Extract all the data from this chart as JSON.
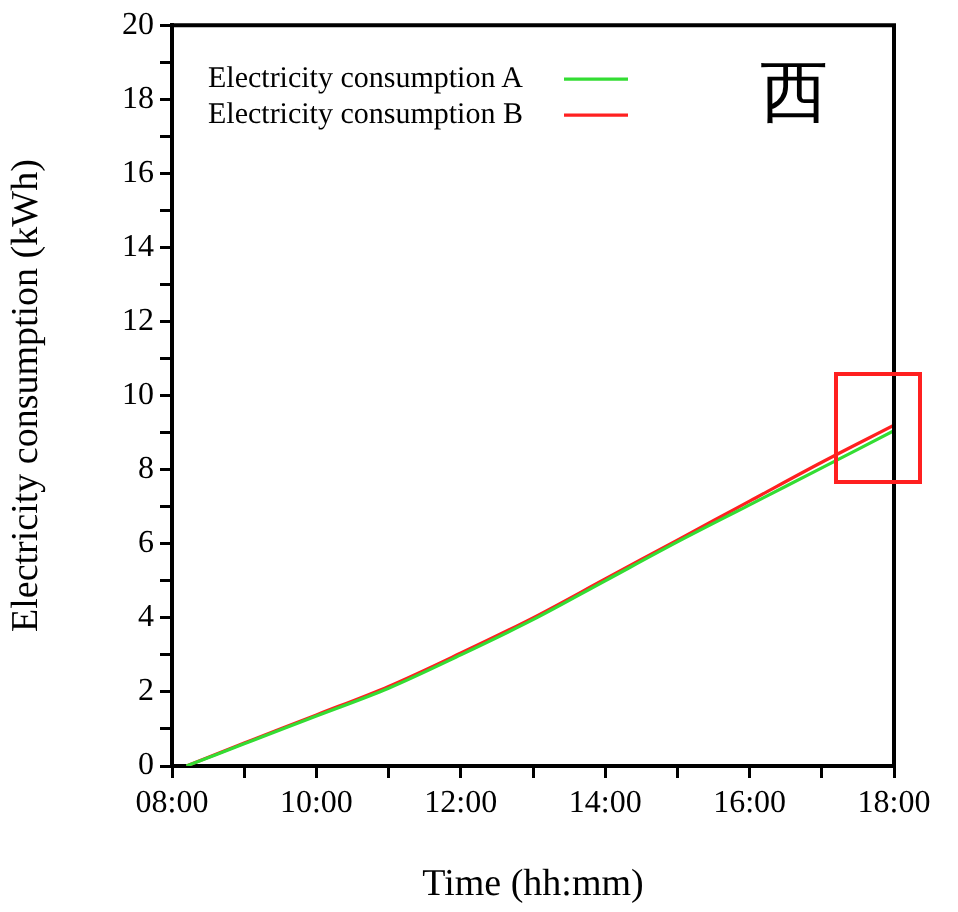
{
  "chart_data": {
    "type": "line",
    "xlabel": "Time (hh:mm)",
    "ylabel": "Electricity consumption (kWh)",
    "annotations": [
      "西"
    ],
    "series": [
      {
        "name": "Electricity consumption A",
        "color": "#33dd33",
        "x": [
          8.2,
          9,
          10,
          11,
          12,
          13,
          14,
          15,
          16,
          17,
          18
        ],
        "values": [
          0,
          0.6,
          1.35,
          2.1,
          3.0,
          3.95,
          5.0,
          6.05,
          7.05,
          8.05,
          9.05
        ]
      },
      {
        "name": "Electricity consumption B",
        "color": "#ff2020",
        "x": [
          8.2,
          9,
          10,
          11,
          12,
          13,
          14,
          15,
          16,
          17,
          18
        ],
        "values": [
          0,
          0.62,
          1.38,
          2.15,
          3.05,
          4.0,
          5.05,
          6.1,
          7.15,
          8.2,
          9.2
        ]
      }
    ],
    "xlim": [
      8,
      18
    ],
    "xticks": [
      {
        "value": 8,
        "label": "08:00"
      },
      {
        "value": 9,
        "label": null
      },
      {
        "value": 10,
        "label": "10:00"
      },
      {
        "value": 11,
        "label": null
      },
      {
        "value": 12,
        "label": "12:00"
      },
      {
        "value": 13,
        "label": null
      },
      {
        "value": 14,
        "label": "14:00"
      },
      {
        "value": 15,
        "label": null
      },
      {
        "value": 16,
        "label": "16:00"
      },
      {
        "value": 17,
        "label": null
      },
      {
        "value": 18,
        "label": "18:00"
      }
    ],
    "ylim": [
      0,
      20
    ],
    "yticks": [
      0,
      {
        "value": 1,
        "label": null
      },
      2,
      {
        "value": 3,
        "label": null
      },
      4,
      {
        "value": 5,
        "label": null
      },
      6,
      {
        "value": 7,
        "label": null
      },
      8,
      {
        "value": 9,
        "label": null
      },
      10,
      {
        "value": 11,
        "label": null
      },
      12,
      {
        "value": 13,
        "label": null
      },
      14,
      {
        "value": 15,
        "label": null
      },
      16,
      {
        "value": 17,
        "label": null
      },
      18,
      {
        "value": 19,
        "label": null
      },
      20
    ],
    "grid": false,
    "legend": "top left",
    "marker": "none",
    "line_style": "solid"
  }
}
